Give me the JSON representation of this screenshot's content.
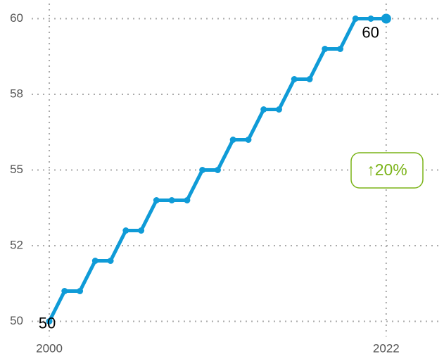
{
  "chart_data": {
    "type": "line",
    "x": [
      2000,
      2001,
      2002,
      2003,
      2004,
      2005,
      2006,
      2007,
      2008,
      2009,
      2010,
      2011,
      2012,
      2013,
      2014,
      2015,
      2016,
      2017,
      2018,
      2019,
      2020,
      2021,
      2022
    ],
    "series": [
      {
        "color": "#0f9bd7",
        "values": [
          50,
          51,
          51,
          52,
          52,
          53,
          53,
          54,
          54,
          54,
          55,
          55,
          56,
          56,
          57,
          57,
          58,
          58,
          59,
          59,
          60,
          60,
          60
        ],
        "value_labels": [
          "50",
          null,
          null,
          null,
          null,
          null,
          null,
          null,
          null,
          null,
          null,
          null,
          null,
          null,
          null,
          null,
          null,
          null,
          null,
          null,
          null,
          null,
          "60"
        ]
      }
    ],
    "xlim": [
      1998.85,
      2025.5
    ],
    "xticks": [
      2000,
      2022
    ],
    "ylim": [
      49.5,
      60.5
    ],
    "yticks": [
      50,
      {
        "value": 52.5,
        "label": "52"
      },
      55,
      {
        "value": 57.5,
        "label": "58"
      },
      60
    ],
    "grid": true,
    "badge": {
      "text": "↑20%",
      "color": "#7ab317"
    }
  }
}
